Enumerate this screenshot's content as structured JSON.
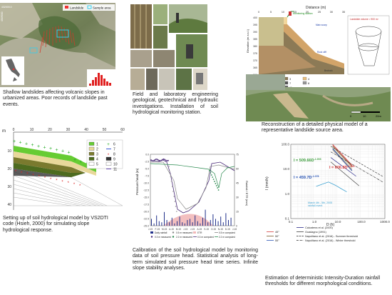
{
  "captions": {
    "map": "Shallow landslides affecting volcanic slopes in urbanized areas. Poor records of landslide past events.",
    "field": "Field and laboratory engineering geological, geotechnical and hydraulic investigations. Installation of soil hydrological monitoring station.",
    "reconstruction": "Reconstruction of a detailed physical model of a representative landslide source area.",
    "model": "Setting up of soil hydrological model by VS2DTI code (Hsieh, 2000) for simulating slope hydrological response.",
    "calibration": "Calibration of the soil hydrological model by monitoring data of soil pressure head. Statistical analysis of long-term simulated soil pressure head time series. Infinite slope stability analyses.",
    "threshold": "Estimation of deterministic Intensity-Duration rainfall thresholds for different morphological conditions."
  },
  "map": {
    "legend_landslide": "Landslide",
    "legend_sample": "Sample area",
    "coord_left_top": "4509000",
    "coord_right_bottom": "4508000",
    "coord_small": "432000.0"
  },
  "section": {
    "x_label": "Distance (m)",
    "y_label": "Elevation (m a.s.l.)",
    "x_ticks": [
      "0",
      "5",
      "10",
      "15",
      "20",
      "25",
      "30",
      "35"
    ],
    "y_ticks": [
      "400",
      "395",
      "390",
      "385",
      "380",
      "375",
      "370",
      "365",
      "360"
    ],
    "station": "Monitoring station",
    "volume": "Landslide volume = 900 m³",
    "main_scarp": "Main scarp",
    "rock_cliff": "Rock cliff",
    "bedrock": "Bedrock",
    "layers": [
      {
        "id": "1",
        "color": "#f2d79c"
      },
      {
        "id": "2",
        "color": "#c9bf8e"
      },
      {
        "id": "3",
        "color": "#8c7a56"
      },
      {
        "id": "4",
        "color": "#e9bf7e"
      },
      {
        "id": "5",
        "color": "#d2a469"
      },
      {
        "id": "6",
        "color": "#b39065"
      },
      {
        "id": "7",
        "color": "#555555"
      },
      {
        "id": "8",
        "color": "#999999"
      },
      {
        "id": "9",
        "color": "#7a86b8"
      },
      {
        "id": "10",
        "color": "#8fb3a3"
      },
      {
        "id": "11",
        "color": "#6b6b6b"
      }
    ],
    "scale_0": "0",
    "scale_10": "10",
    "scale_20": "20m"
  },
  "model": {
    "unit": "m",
    "x_ticks": [
      "0",
      "10",
      "20",
      "30",
      "40",
      "50",
      "60"
    ],
    "y_ticks": [
      "10",
      "20",
      "30",
      "40"
    ],
    "legend": [
      {
        "label": "1",
        "color": "#66cc33",
        "kind": "box"
      },
      {
        "label": "2",
        "color": "#e8d89a",
        "kind": "box"
      },
      {
        "label": "3",
        "color": "#7a7a2e",
        "kind": "box"
      },
      {
        "label": "4",
        "color": "#4d6b1f",
        "kind": "box"
      },
      {
        "label": "5",
        "color": "#ffffff",
        "kind": "box"
      },
      {
        "label": "6",
        "color": "#22aa22",
        "kind": "plus"
      },
      {
        "label": "7",
        "color": "#2244cc",
        "kind": "line"
      },
      {
        "label": "8",
        "color": "#dd2222",
        "kind": "star"
      },
      {
        "label": "9",
        "color": "#333333",
        "kind": "box"
      },
      {
        "label": "10",
        "color": "#ffffff",
        "kind": "box"
      },
      {
        "label": "11",
        "color": "#5533aa",
        "kind": "line"
      }
    ]
  },
  "calibration": {
    "y_left_label": "Pressure head (m)",
    "y_right_label": "Rainfall / ETR (mm)",
    "y_left_ticks": [
      "0.0",
      "-2.5",
      "-5.0",
      "-7.5",
      "-10.0",
      "-12.5",
      "-15.0",
      "-17.5",
      "-20.0",
      "-22.5",
      "-25.0"
    ],
    "y_right_ticks": [
      "0",
      "15",
      "30",
      "45",
      "60",
      "75"
    ],
    "x_ticks": [
      "J-15",
      "F-15",
      "M-15",
      "A-15",
      "M-15",
      "J-15",
      "J-15",
      "A-15",
      "S-15",
      "O-15",
      "N-15",
      "D-15",
      "J-16"
    ],
    "legend": [
      {
        "label": "Daily rainfall",
        "color": "#1f2f8a",
        "kind": "bar"
      },
      {
        "label": "0.3 m measured",
        "color": "#4b2c7a",
        "kind": "dot"
      },
      {
        "label": "0.5 m measured",
        "color": "#888888",
        "kind": "dot"
      },
      {
        "label": "2.2 m measured",
        "color": "#2a8a4f",
        "kind": "dot"
      },
      {
        "label": "ETR",
        "color": "#f2b8b8",
        "kind": "bar"
      },
      {
        "label": "0.3 m computed",
        "color": "#4b2c7a",
        "kind": "line"
      },
      {
        "label": "0.5 m computed",
        "color": "#888888",
        "kind": "line"
      },
      {
        "label": "2.2 m computed",
        "color": "#2a8a4f",
        "kind": "line"
      }
    ]
  },
  "threshold": {
    "y_label": "I (mm/h)",
    "x_label": "D (h)",
    "x_ticks": [
      "0.1",
      "1.0",
      "10.0",
      "100.0",
      "1000.0"
    ],
    "y_ticks": [
      "100.0",
      "10.0",
      "1.0",
      "0.1"
    ],
    "eq1": "I = 509.66D",
    "eq1_exp": "-1.003",
    "eq2": "I = 606.8D",
    "eq2_exp": "-1.020",
    "eq3": "I = 459.7D",
    "eq3_exp": "-1.078",
    "event": "March 4th - 5th, 2005 rainfall event",
    "legend": [
      {
        "label": "45°",
        "color": "#d44040",
        "style": "solid"
      },
      {
        "label": "50°",
        "color": "#7a5a2a",
        "style": "solid"
      },
      {
        "label": "55°",
        "color": "#2a55b4",
        "style": "solid"
      },
      {
        "label": "Calcaterra et al. (2000)",
        "color": "#2b2b8a",
        "style": "solid"
      },
      {
        "label": "Guadagno (1991)",
        "color": "#444444",
        "style": "solid"
      },
      {
        "label": "Napolitano et al. (2016) - Summer threshold",
        "color": "#222222",
        "style": "dash"
      },
      {
        "label": "Napolitano et al. (2016) - Winter threshold",
        "color": "#222222",
        "style": "dashdot"
      }
    ]
  }
}
